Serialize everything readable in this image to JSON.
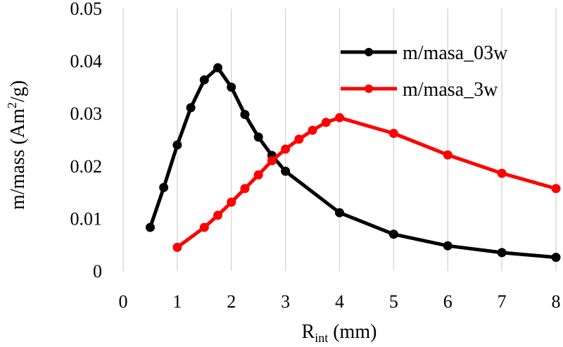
{
  "chart_data": {
    "type": "line",
    "xlabel": {
      "main": "R",
      "sub": "int",
      "unit": " (mm)"
    },
    "ylabel": {
      "pre": "m/mass (Am",
      "sup": "2",
      "post": "/g)"
    },
    "xlim": [
      0,
      8
    ],
    "ylim": [
      0,
      0.05
    ],
    "xticks": [
      "0",
      "1",
      "2",
      "3",
      "4",
      "5",
      "6",
      "7",
      "8"
    ],
    "yticks": [
      "0",
      "0.01",
      "0.02",
      "0.03",
      "0.04",
      "0.05"
    ],
    "grid": "vertical",
    "legend_position": "top-right",
    "series": [
      {
        "name": "m/masa_03w",
        "color": "#000000",
        "x": [
          0.5,
          0.75,
          1.0,
          1.25,
          1.5,
          1.75,
          2.0,
          2.25,
          2.5,
          2.75,
          3.0,
          4.0,
          5.0,
          6.0,
          7.0,
          8.0
        ],
        "y": [
          0.0083,
          0.0159,
          0.024,
          0.0311,
          0.0364,
          0.0387,
          0.035,
          0.0298,
          0.0255,
          0.022,
          0.019,
          0.0111,
          0.007,
          0.0048,
          0.0035,
          0.0026
        ]
      },
      {
        "name": "m/masa_3w",
        "color": "#ff0000",
        "x": [
          1.0,
          1.5,
          1.75,
          2.0,
          2.25,
          2.5,
          2.75,
          3.0,
          3.25,
          3.5,
          3.75,
          4.0,
          5.0,
          6.0,
          7.0,
          8.0
        ],
        "y": [
          0.0045,
          0.0083,
          0.0106,
          0.0131,
          0.0157,
          0.0183,
          0.021,
          0.0232,
          0.0251,
          0.0268,
          0.0283,
          0.0292,
          0.0262,
          0.0221,
          0.0186,
          0.0157
        ]
      }
    ]
  }
}
